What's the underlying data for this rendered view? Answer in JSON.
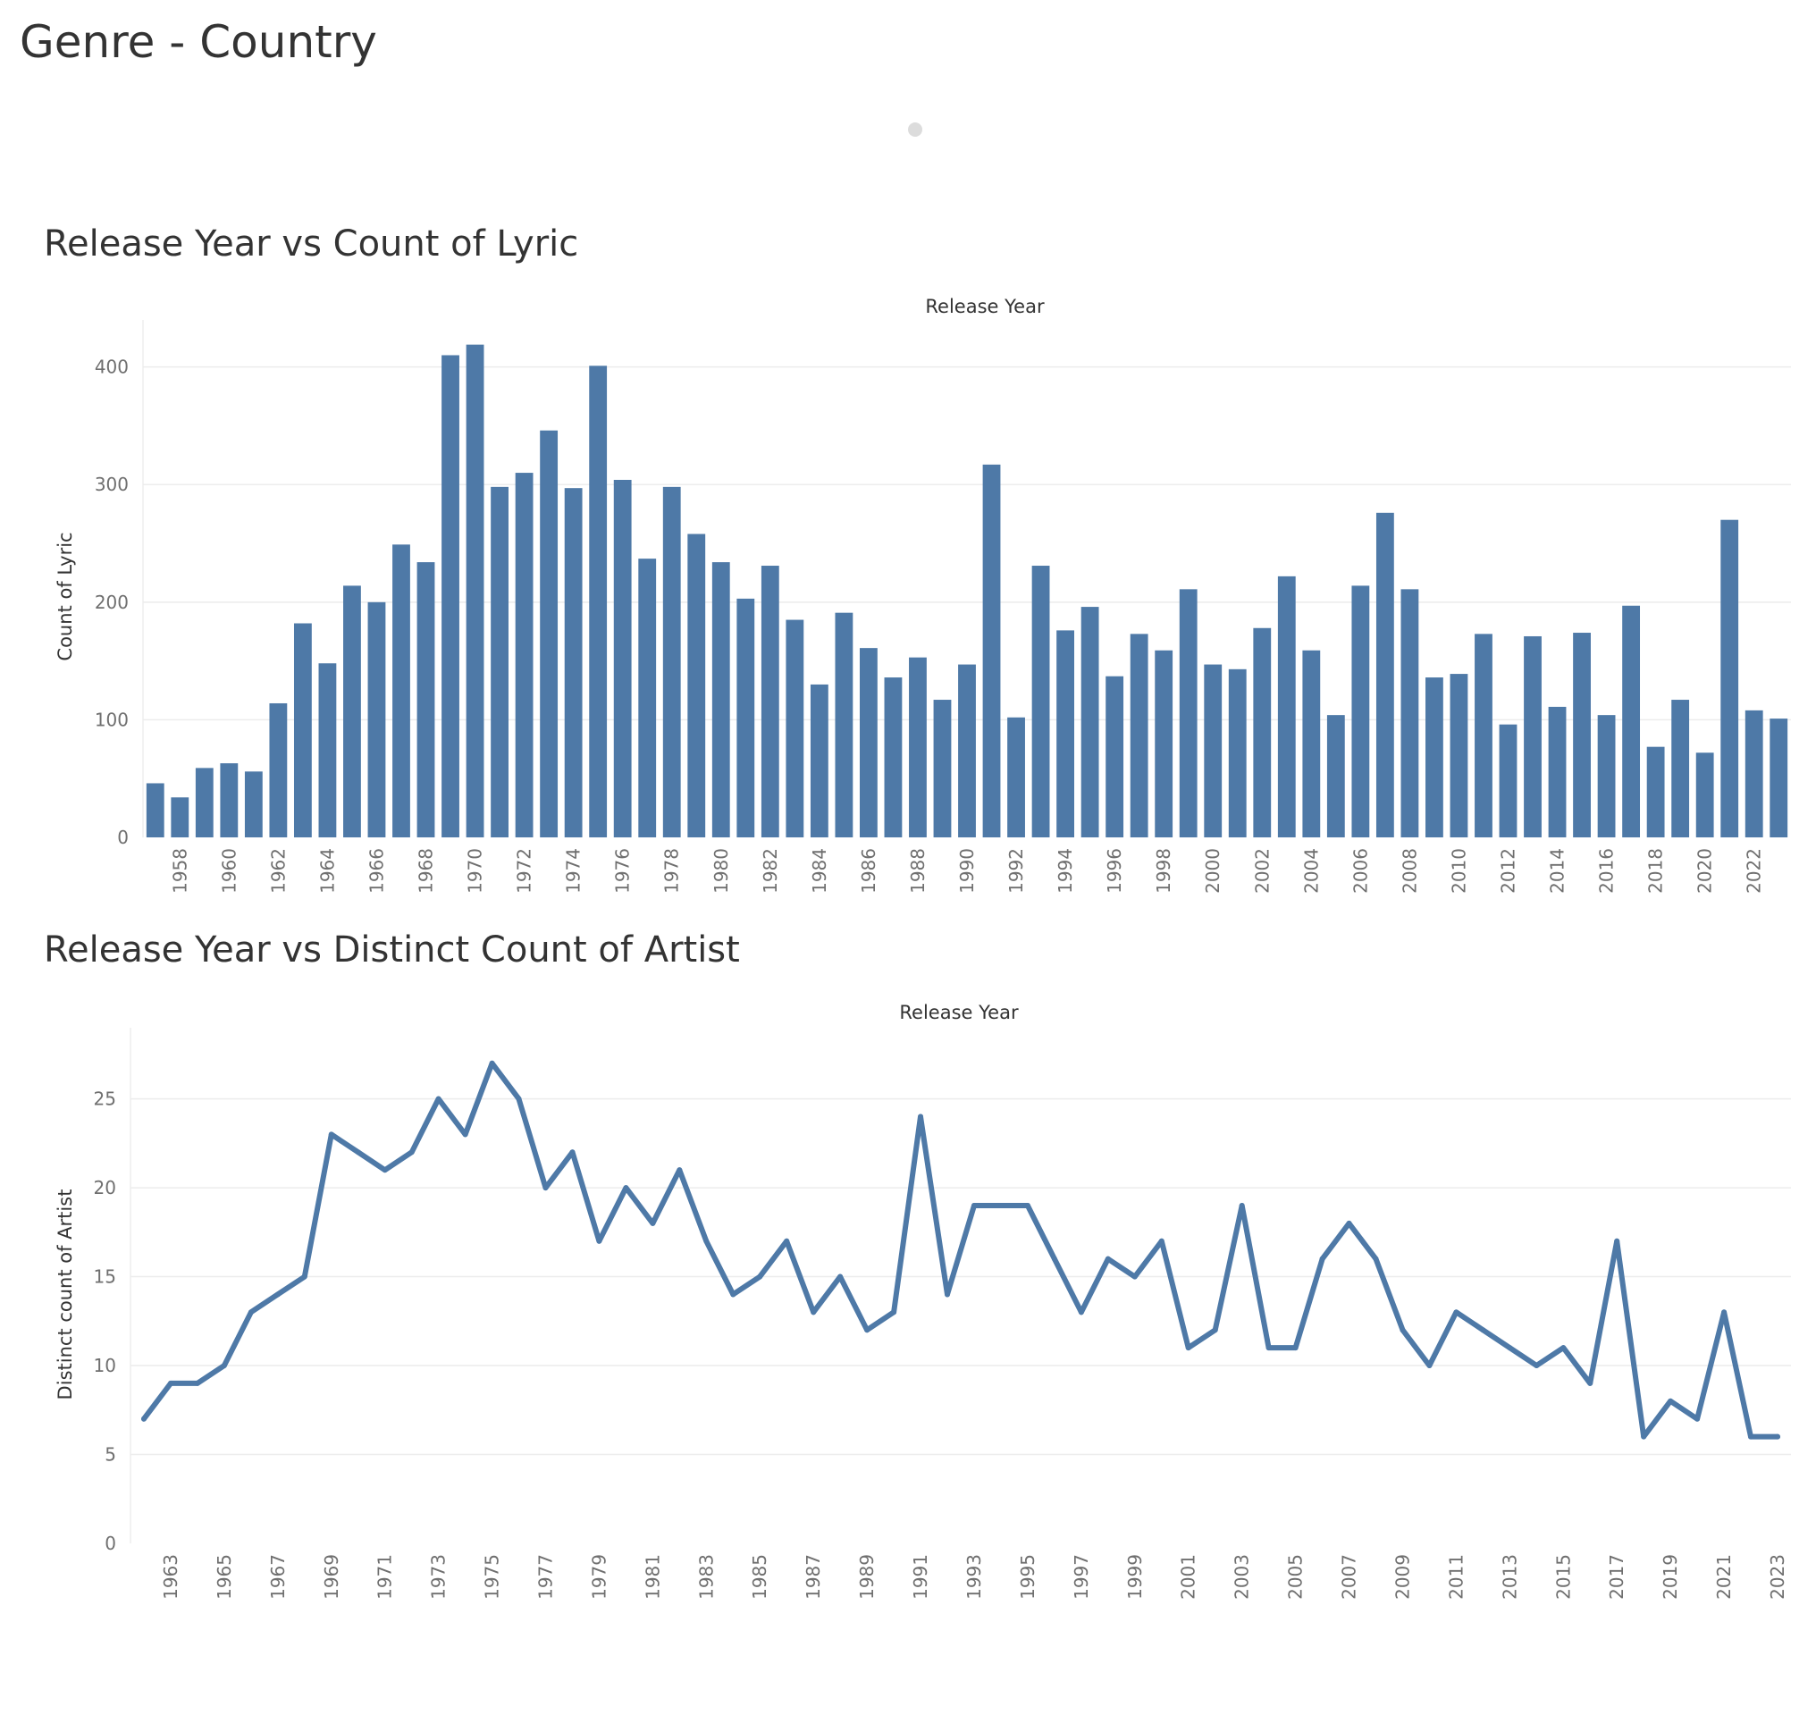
{
  "dashboard": {
    "title": "Genre - Country"
  },
  "colors": {
    "accent": "#4e79a7",
    "grid": "#ececec",
    "text": "#333333",
    "tick": "#6f6f6f"
  },
  "chart_data": [
    {
      "type": "bar",
      "title": "Release Year vs Count of Lyric",
      "xlabel": "Release Year",
      "ylabel": "Count of Lyric",
      "ylim": [
        0,
        440
      ],
      "yticks": [
        0,
        100,
        200,
        300,
        400
      ],
      "categories": [
        1957,
        1958,
        1959,
        1960,
        1961,
        1962,
        1963,
        1964,
        1965,
        1966,
        1967,
        1968,
        1969,
        1970,
        1971,
        1972,
        1973,
        1974,
        1975,
        1976,
        1977,
        1978,
        1979,
        1980,
        1981,
        1982,
        1983,
        1984,
        1985,
        1986,
        1987,
        1988,
        1989,
        1990,
        1991,
        1992,
        1993,
        1994,
        1995,
        1996,
        1997,
        1998,
        1999,
        2000,
        2001,
        2002,
        2003,
        2004,
        2005,
        2006,
        2007,
        2008,
        2009,
        2010,
        2011,
        2012,
        2013,
        2014,
        2015,
        2016,
        2017,
        2018,
        2019,
        2020,
        2021,
        2022,
        2023
      ],
      "xtick_labels": [
        "1958",
        "1960",
        "1962",
        "1964",
        "1966",
        "1968",
        "1970",
        "1972",
        "1974",
        "1976",
        "1978",
        "1980",
        "1982",
        "1984",
        "1986",
        "1988",
        "1990",
        "1992",
        "1994",
        "1996",
        "1998",
        "2000",
        "2002",
        "2004",
        "2006",
        "2008",
        "2010",
        "2012",
        "2014",
        "2016",
        "2018",
        "2020",
        "2022"
      ],
      "values": [
        46,
        34,
        59,
        63,
        56,
        114,
        182,
        148,
        214,
        200,
        249,
        234,
        410,
        419,
        298,
        310,
        346,
        297,
        401,
        304,
        237,
        298,
        258,
        234,
        203,
        231,
        185,
        130,
        191,
        161,
        136,
        153,
        117,
        147,
        317,
        102,
        231,
        176,
        196,
        137,
        173,
        159,
        211,
        147,
        143,
        178,
        222,
        159,
        104,
        214,
        276,
        211,
        136,
        139,
        173,
        96,
        171,
        111,
        174,
        104,
        197,
        77,
        117,
        72,
        270,
        108,
        101
      ]
    },
    {
      "type": "line",
      "title": "Release Year vs Distinct Count of Artist",
      "xlabel": "Release Year",
      "ylabel": "Distinct count of Artist",
      "ylim": [
        0,
        29
      ],
      "yticks": [
        0,
        5,
        10,
        15,
        20,
        25
      ],
      "x": [
        1962,
        1963,
        1964,
        1965,
        1966,
        1967,
        1968,
        1969,
        1970,
        1971,
        1972,
        1973,
        1974,
        1975,
        1976,
        1977,
        1978,
        1979,
        1980,
        1981,
        1982,
        1983,
        1984,
        1985,
        1986,
        1987,
        1988,
        1989,
        1990,
        1991,
        1992,
        1993,
        1994,
        1995,
        1996,
        1997,
        1998,
        1999,
        2000,
        2001,
        2002,
        2003,
        2004,
        2005,
        2006,
        2007,
        2008,
        2009,
        2010,
        2011,
        2012,
        2013,
        2014,
        2015,
        2016,
        2017,
        2018,
        2019,
        2020,
        2021,
        2022,
        2023
      ],
      "xtick_labels": [
        "1963",
        "1965",
        "1967",
        "1969",
        "1971",
        "1973",
        "1975",
        "1977",
        "1979",
        "1981",
        "1983",
        "1985",
        "1987",
        "1989",
        "1991",
        "1993",
        "1995",
        "1997",
        "1999",
        "2001",
        "2003",
        "2005",
        "2007",
        "2009",
        "2011",
        "2013",
        "2015",
        "2017",
        "2019",
        "2021",
        "2023"
      ],
      "values": [
        7,
        9,
        9,
        10,
        13,
        14,
        15,
        23,
        22,
        21,
        22,
        25,
        23,
        27,
        25,
        20,
        22,
        17,
        20,
        18,
        21,
        17,
        14,
        15,
        17,
        13,
        15,
        12,
        13,
        24,
        14,
        19,
        19,
        19,
        16,
        13,
        16,
        15,
        17,
        11,
        12,
        19,
        11,
        11,
        16,
        18,
        16,
        12,
        10,
        13,
        12,
        11,
        10,
        11,
        9,
        17,
        6,
        8,
        7,
        13,
        6,
        6
      ]
    }
  ]
}
